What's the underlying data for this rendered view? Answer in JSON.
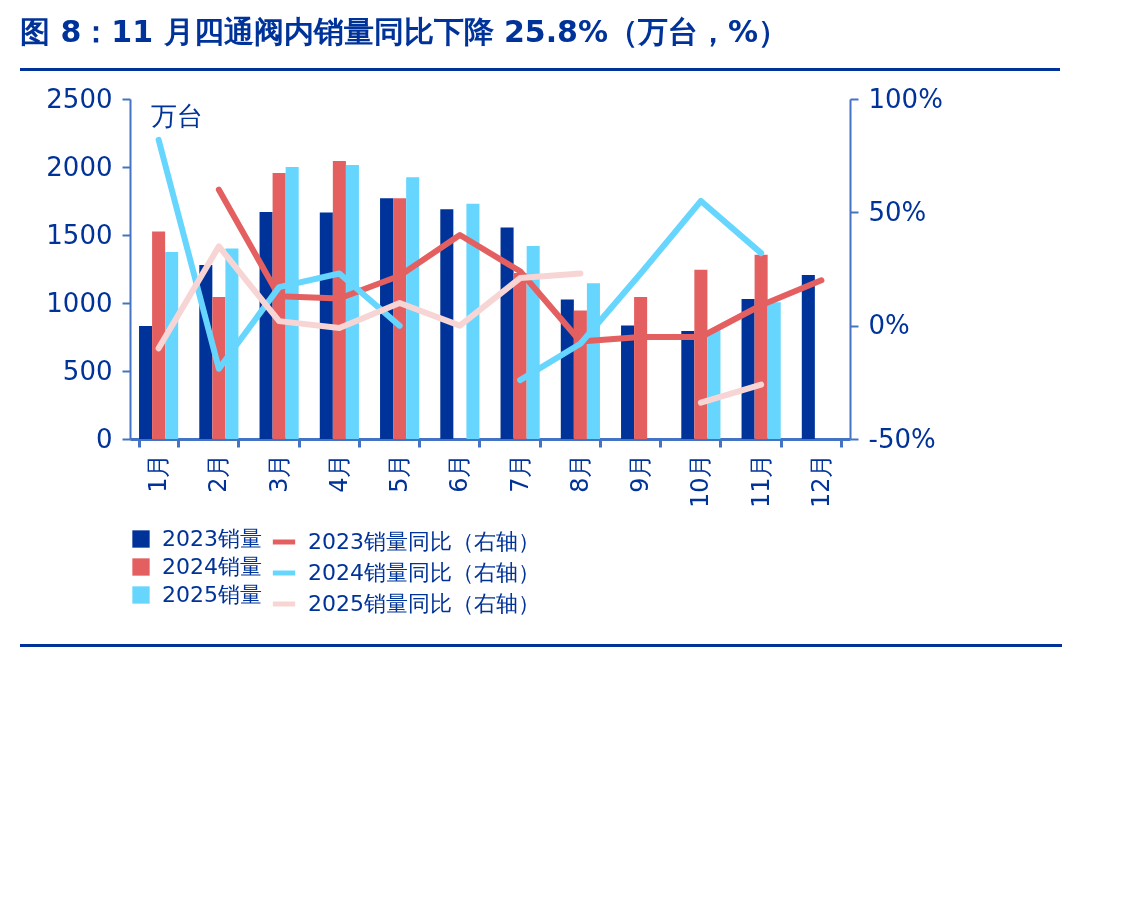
{
  "chart_data": {
    "type": "bar",
    "title": "图 8：11 月四通阀内销量同比下降 25.8%（万台，%）",
    "ylabel": "万台",
    "categories": [
      "1月",
      "2月",
      "3月",
      "4月",
      "5月",
      "6月",
      "7月",
      "8月",
      "9月",
      "10月",
      "11月",
      "12月"
    ],
    "series": [
      {
        "name": "2023销量",
        "color": "#003399",
        "values": [
          830,
          1280,
          1670,
          1665,
          1770,
          1690,
          1555,
          1025,
          835,
          795,
          1030,
          1205
        ]
      },
      {
        "name": "2024销量",
        "color": "#e46060",
        "values": [
          1525,
          1045,
          1955,
          2045,
          1770,
          null,
          1220,
          945,
          1045,
          1245,
          1355,
          null
        ]
      },
      {
        "name": "2025销量",
        "color": "#66d6ff",
        "values": [
          1375,
          1400,
          2000,
          2015,
          1925,
          1730,
          1420,
          1145,
          null,
          800,
          1005,
          null
        ]
      },
      {
        "name": "2023销量同比（右轴）",
        "type": "line",
        "axis": "y2",
        "color": "#e46060",
        "values": [
          null,
          60,
          13,
          12,
          22,
          40,
          24,
          -7,
          -5,
          -5,
          9,
          20
        ]
      },
      {
        "name": "2024销量同比（右轴）",
        "type": "line",
        "axis": "y2",
        "color": "#66d6ff",
        "values": [
          82,
          -19,
          17,
          23,
          0,
          null,
          -24,
          -8,
          23,
          55,
          32,
          null
        ]
      },
      {
        "name": "2025销量同比（右轴）",
        "type": "line",
        "axis": "y2",
        "color": "#f8d5d5",
        "values": [
          -10,
          35,
          2,
          -1,
          10,
          0,
          21,
          23,
          null,
          -34,
          -26,
          null
        ]
      }
    ],
    "ylim": [
      0,
      2500
    ],
    "yticks": [
      0,
      500,
      1000,
      1500,
      2000,
      2500
    ],
    "y2lim": [
      -50,
      100
    ],
    "y2ticks": [
      {
        "value": -50,
        "label": "-50%"
      },
      {
        "value": 0,
        "label": "0%"
      },
      {
        "value": 50,
        "label": "50%"
      },
      {
        "value": 100,
        "label": "100%"
      }
    ],
    "grid": false,
    "legend": "bottom"
  }
}
